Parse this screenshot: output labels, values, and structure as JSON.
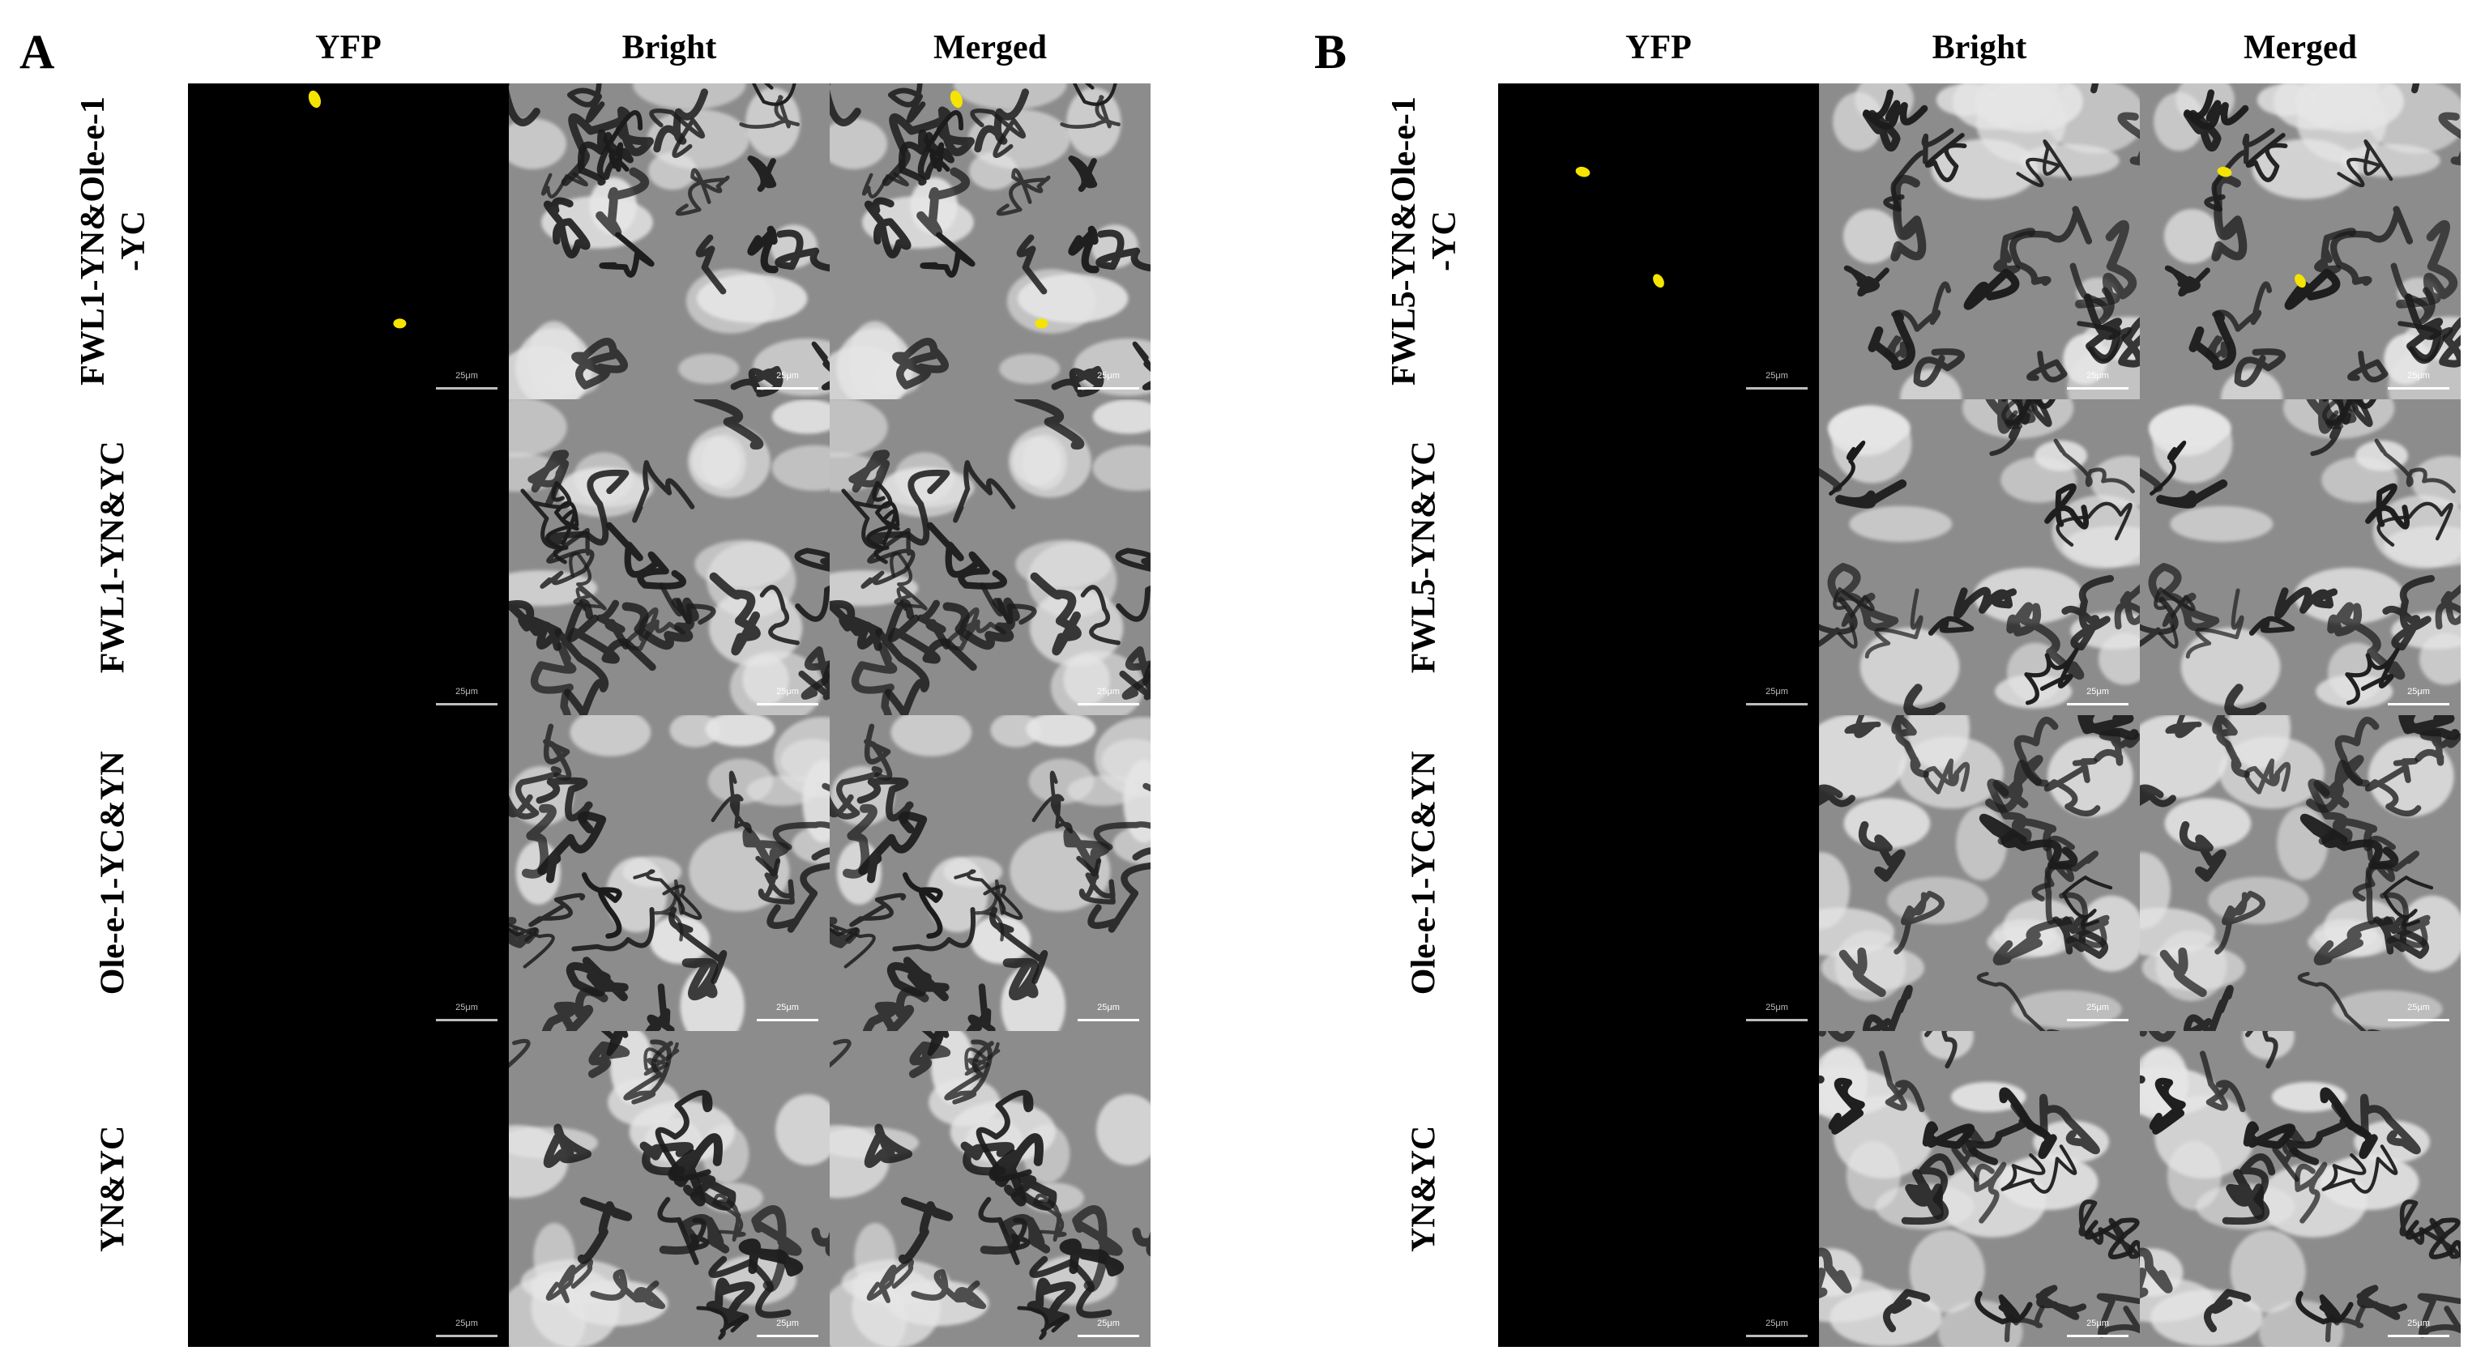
{
  "panels": [
    {
      "letter": "A",
      "columns": [
        "YFP",
        "Bright",
        "Merged"
      ],
      "scale_label": "25μm",
      "rows": [
        {
          "label_lines": [
            "FWL1-YN&Ole-e-1",
            "-YC"
          ],
          "yfp_signal": "positive",
          "signal_count": 2
        },
        {
          "label_lines": [
            "FWL1-YN&YC"
          ],
          "yfp_signal": "none",
          "signal_count": 0
        },
        {
          "label_lines": [
            "Ole-e-1-YC&YN"
          ],
          "yfp_signal": "none",
          "signal_count": 0
        },
        {
          "label_lines": [
            "YN&YC"
          ],
          "yfp_signal": "none",
          "signal_count": 0
        }
      ]
    },
    {
      "letter": "B",
      "columns": [
        "YFP",
        "Bright",
        "Merged"
      ],
      "scale_label": "25μm",
      "rows": [
        {
          "label_lines": [
            "FWL5-YN&Ole-e-1",
            "-YC"
          ],
          "yfp_signal": "positive",
          "signal_count": 2
        },
        {
          "label_lines": [
            "FWL5-YN&YC"
          ],
          "yfp_signal": "none",
          "signal_count": 0
        },
        {
          "label_lines": [
            "Ole-e-1-YC&YN"
          ],
          "yfp_signal": "none",
          "signal_count": 0
        },
        {
          "label_lines": [
            "YN&YC"
          ],
          "yfp_signal": "none",
          "signal_count": 0
        }
      ]
    }
  ],
  "colors": {
    "yfp_signal": "#f5e400",
    "yfp_background": "#000000",
    "scale_bar": "#ffffff"
  }
}
